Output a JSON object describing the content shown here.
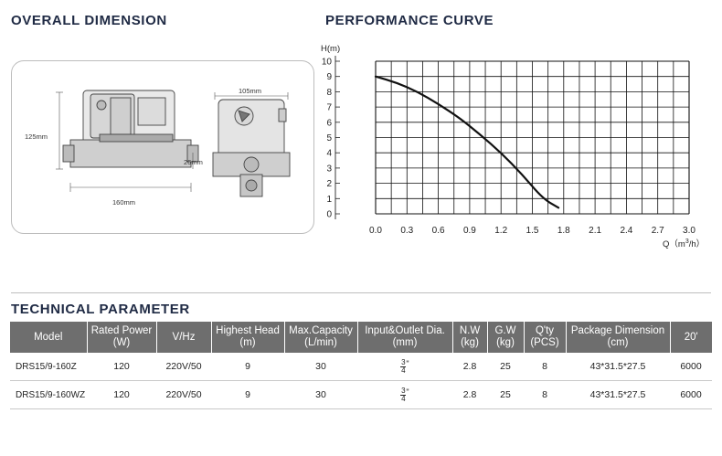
{
  "sections": {
    "overall": "OVERALL DIMENSION",
    "performance": "PERFORMANCE CURVE",
    "technical": "TECHNICAL PARAMETER"
  },
  "dimensions": {
    "height": "125mm",
    "length": "160mm",
    "width": "105mm",
    "port_height": "26mm"
  },
  "chart_data": {
    "type": "line",
    "title": "",
    "ylabel": "H(m)",
    "xlabel": "Q（m³/h）",
    "xlabel_sup": "3",
    "x_ticks": [
      "0.0",
      "0.3",
      "0.6",
      "0.9",
      "1.2",
      "1.5",
      "1.8",
      "2.1",
      "2.4",
      "2.7",
      "3.0"
    ],
    "y_ticks": [
      "0",
      "1",
      "2",
      "3",
      "4",
      "5",
      "6",
      "7",
      "8",
      "9",
      "10"
    ],
    "xlim": [
      0,
      3.0
    ],
    "ylim": [
      0,
      10
    ],
    "grid": true,
    "series": [
      {
        "x": [
          0.0,
          0.2,
          0.4,
          0.6,
          0.8,
          1.0,
          1.2,
          1.4,
          1.6,
          1.75
        ],
        "y": [
          9.0,
          8.6,
          8.0,
          7.2,
          6.3,
          5.2,
          4.0,
          2.6,
          1.0,
          0.4
        ]
      }
    ]
  },
  "table": {
    "headers": [
      "Model",
      "Rated Power (W)",
      "V/Hz",
      "Highest Head (m)",
      "Max.Capacity (L/min)",
      "Input&Outlet Dia. (mm)",
      "N.W (kg)",
      "G.W (kg)",
      "Q'ty (PCS)",
      "Package Dimension (cm)",
      "20'"
    ],
    "rows": [
      {
        "model": "DRS15/9-160Z",
        "power": "120",
        "vhz": "220V/50",
        "head": "9",
        "capacity": "30",
        "dia_num": "3",
        "dia_den": "4",
        "dia_unit": "\"",
        "nw": "2.8",
        "gw": "25",
        "qty": "8",
        "package": "43*31.5*27.5",
        "twenty": "6000"
      },
      {
        "model": "DRS15/9-160WZ",
        "power": "120",
        "vhz": "220V/50",
        "head": "9",
        "capacity": "30",
        "dia_num": "3",
        "dia_den": "4",
        "dia_unit": "\"",
        "nw": "2.8",
        "gw": "25",
        "qty": "8",
        "package": "43*31.5*27.5",
        "twenty": "6000"
      }
    ]
  }
}
